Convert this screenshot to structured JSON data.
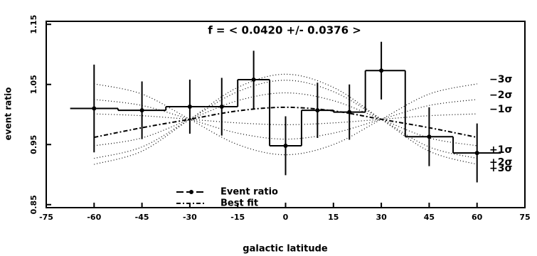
{
  "chart_data": {
    "type": "errorbar",
    "annotation": "f = <  0.0420 +/-    0.0376  >",
    "x_label": "galactic latitude",
    "y_label": "event ratio",
    "xlim": [
      -75,
      75
    ],
    "xticks": [
      -75,
      -60,
      -45,
      -30,
      -15,
      0,
      15,
      30,
      45,
      60,
      75
    ],
    "ylim": [
      0.845,
      1.155
    ],
    "yticks": [
      0.85,
      0.95,
      1.05,
      1.15
    ],
    "color": "#000000",
    "event_ratio": {
      "name": "Event ratio",
      "x": [
        -60,
        -45,
        -30,
        -20,
        -10,
        0,
        10,
        20,
        30,
        45,
        60
      ],
      "values": [
        1.01,
        1.007,
        1.013,
        1.013,
        1.058,
        0.948,
        1.007,
        1.004,
        1.073,
        0.963,
        0.936
      ],
      "errors": [
        0.073,
        0.048,
        0.045,
        0.048,
        0.048,
        0.049,
        0.046,
        0.046,
        0.048,
        0.049,
        0.049
      ]
    },
    "best_fit": {
      "name": "Best fit",
      "x": [
        -60,
        -45,
        -30,
        -15,
        0,
        15,
        30,
        45,
        60
      ],
      "values": [
        0.962,
        0.978,
        0.992,
        1.006,
        1.012,
        1.006,
        0.992,
        0.978,
        0.962
      ]
    },
    "sigma_x": [
      -60,
      -45,
      -30,
      -15,
      0,
      15,
      30,
      45,
      60
    ],
    "series": [
      {
        "name": "−3σ",
        "values": [
          1.051,
          1.034,
          0.992,
          0.95,
          0.933,
          0.95,
          0.992,
          1.034,
          1.051
        ]
      },
      {
        "name": "−2σ",
        "values": [
          1.025,
          1.015,
          0.992,
          0.969,
          0.959,
          0.969,
          0.992,
          1.015,
          1.025
        ]
      },
      {
        "name": "−1σ",
        "values": [
          1.001,
          0.998,
          0.992,
          0.986,
          0.983,
          0.986,
          0.992,
          0.998,
          1.001
        ]
      },
      {
        "name": "+1σ",
        "values": [
          0.948,
          0.961,
          0.992,
          1.023,
          1.036,
          1.023,
          0.992,
          0.961,
          0.948
        ]
      },
      {
        "name": "+2σ",
        "values": [
          0.927,
          0.946,
          0.992,
          1.038,
          1.057,
          1.038,
          0.992,
          0.946,
          0.927
        ]
      },
      {
        "name": "+3σ",
        "values": [
          0.917,
          0.939,
          0.992,
          1.045,
          1.067,
          1.045,
          0.992,
          0.939,
          0.917
        ]
      }
    ]
  }
}
